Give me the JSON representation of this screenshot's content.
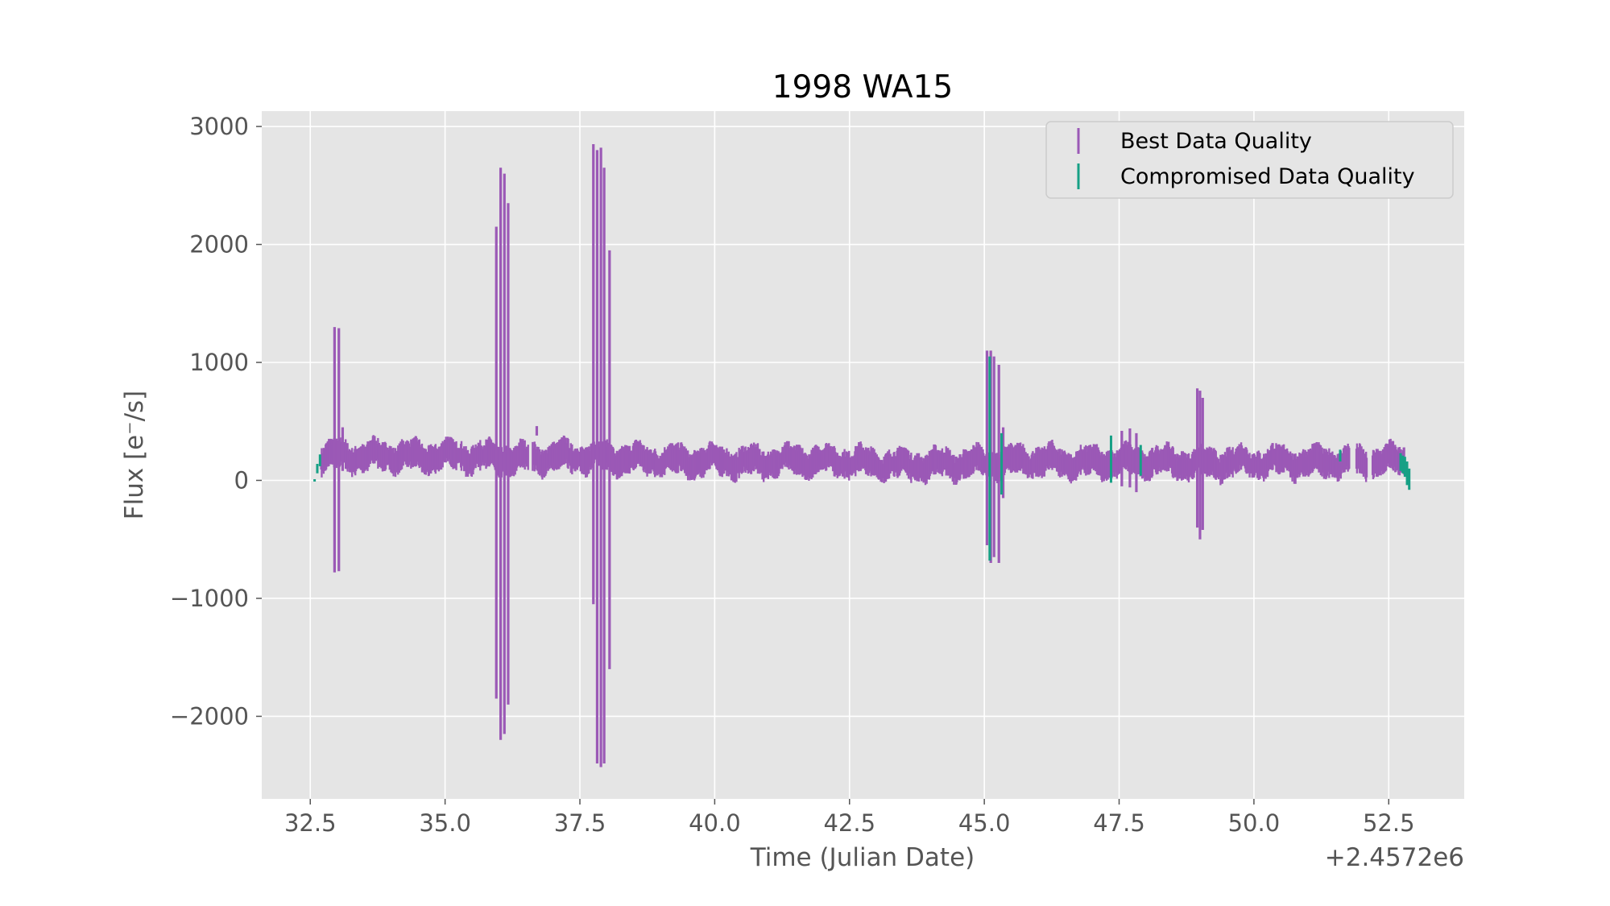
{
  "chart_data": {
    "type": "scatter",
    "title": "1998 WA15",
    "xlabel": "Time (Julian Date)",
    "ylabel": "Flux [e$^-$/s]",
    "ylabel_display": "Flux [e⁻/s]",
    "x_offset_label": "+2.4572e6",
    "xlim": [
      31.6,
      53.9
    ],
    "ylim": [
      -2700,
      3130
    ],
    "xticks": [
      32.5,
      35.0,
      37.5,
      40.0,
      42.5,
      45.0,
      47.5,
      50.0,
      52.5
    ],
    "xtick_labels": [
      "32.5",
      "35.0",
      "37.5",
      "40.0",
      "42.5",
      "45.0",
      "47.5",
      "50.0",
      "52.5"
    ],
    "yticks": [
      -2000,
      -1000,
      0,
      1000,
      2000,
      3000
    ],
    "ytick_labels": [
      "−2000",
      "−1000",
      "0",
      "1000",
      "2000",
      "3000"
    ],
    "grid": true,
    "legend_position": "top-right",
    "colors": {
      "background": "#e5e5e5",
      "grid": "#ffffff",
      "best": "#9b59b6",
      "compromised": "#16a085"
    },
    "series": [
      {
        "name": "Best Data Quality",
        "color": "#9b59b6",
        "baseline": [
          [
            32.7,
            200
          ],
          [
            33.0,
            210
          ],
          [
            33.5,
            200
          ],
          [
            34.0,
            210
          ],
          [
            34.5,
            200
          ],
          [
            35.0,
            210
          ],
          [
            35.5,
            200
          ],
          [
            36.0,
            190
          ],
          [
            36.5,
            180
          ],
          [
            37.0,
            200
          ],
          [
            37.5,
            200
          ],
          [
            38.0,
            190
          ],
          [
            38.5,
            180
          ],
          [
            39.0,
            170
          ],
          [
            39.5,
            160
          ],
          [
            40.0,
            170
          ],
          [
            40.5,
            150
          ],
          [
            41.0,
            160
          ],
          [
            41.5,
            170
          ],
          [
            42.0,
            160
          ],
          [
            42.5,
            160
          ],
          [
            43.0,
            140
          ],
          [
            43.5,
            130
          ],
          [
            44.0,
            130
          ],
          [
            44.5,
            140
          ],
          [
            45.0,
            150
          ],
          [
            45.5,
            160
          ],
          [
            46.0,
            170
          ],
          [
            46.5,
            150
          ],
          [
            47.0,
            150
          ],
          [
            47.5,
            160
          ],
          [
            48.0,
            160
          ],
          [
            48.5,
            150
          ],
          [
            49.0,
            140
          ],
          [
            49.5,
            150
          ],
          [
            50.0,
            150
          ],
          [
            50.5,
            160
          ],
          [
            51.0,
            150
          ],
          [
            51.5,
            160
          ],
          [
            52.0,
            150
          ],
          [
            52.5,
            170
          ],
          [
            52.8,
            170
          ]
        ],
        "error_bars": [
          [
            32.95,
            -780,
            1300
          ],
          [
            33.03,
            -770,
            1290
          ],
          [
            33.1,
            80,
            450
          ],
          [
            35.95,
            -1850,
            2150
          ],
          [
            36.03,
            -2200,
            2650
          ],
          [
            36.1,
            -2150,
            2600
          ],
          [
            36.17,
            -1900,
            2350
          ],
          [
            36.7,
            380,
            460
          ],
          [
            37.75,
            -1050,
            2850
          ],
          [
            37.82,
            -2400,
            2800
          ],
          [
            37.89,
            -2430,
            2820
          ],
          [
            37.95,
            -2400,
            2650
          ],
          [
            38.05,
            -1600,
            1950
          ],
          [
            45.05,
            -550,
            1100
          ],
          [
            45.12,
            -700,
            1100
          ],
          [
            45.18,
            -650,
            1050
          ],
          [
            45.27,
            -700,
            980
          ],
          [
            45.35,
            -150,
            450
          ],
          [
            47.55,
            -50,
            420
          ],
          [
            47.7,
            -60,
            440
          ],
          [
            47.82,
            -100,
            400
          ],
          [
            48.95,
            -400,
            780
          ],
          [
            49.0,
            -500,
            760
          ],
          [
            49.05,
            -420,
            700
          ]
        ]
      },
      {
        "name": "Compromised Data Quality",
        "color": "#16a085",
        "error_bars": [
          [
            32.58,
            -10,
            10
          ],
          [
            32.63,
            60,
            140
          ],
          [
            32.68,
            120,
            220
          ],
          [
            45.1,
            -680,
            1050
          ],
          [
            45.32,
            -120,
            400
          ],
          [
            47.35,
            -20,
            380
          ],
          [
            47.9,
            40,
            300
          ],
          [
            51.6,
            160,
            260
          ],
          [
            52.72,
            80,
            230
          ],
          [
            52.76,
            60,
            210
          ],
          [
            52.8,
            30,
            200
          ],
          [
            52.84,
            -40,
            160
          ],
          [
            52.88,
            -80,
            100
          ]
        ]
      }
    ]
  }
}
